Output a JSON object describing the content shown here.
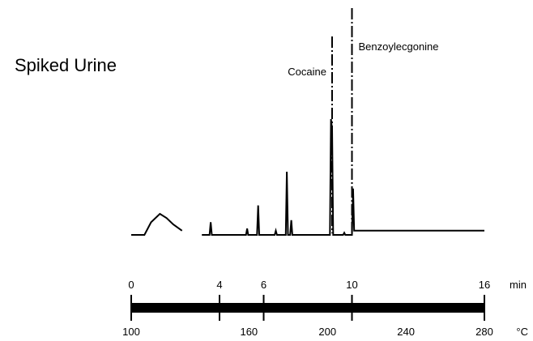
{
  "chart_data": {
    "type": "line",
    "title": "Spiked Urine",
    "peak_labels": [
      {
        "text": "Cocaine",
        "time_min": 9.1
      },
      {
        "text": "Benzoylecgonine",
        "time_min": 10.0
      }
    ],
    "time_axis": {
      "ticks": [
        "0",
        "4",
        "6",
        "10",
        "16"
      ],
      "unit": "min",
      "range": [
        0,
        16
      ]
    },
    "temperature_axis": {
      "ticks": [
        "100",
        "160",
        "200",
        "240",
        "280"
      ],
      "unit": "°C",
      "range": [
        100,
        280
      ]
    },
    "series": [
      {
        "points": [
          [
            0.0,
            0.0
          ],
          [
            0.6,
            0.0
          ],
          [
            0.9,
            0.06
          ],
          [
            1.3,
            0.1
          ],
          [
            1.6,
            0.08
          ],
          [
            1.9,
            0.05
          ],
          [
            2.3,
            0.02
          ],
          [
            2.6,
            null
          ],
          [
            3.2,
            0.0
          ],
          [
            3.55,
            0.0
          ],
          [
            3.6,
            0.06
          ],
          [
            3.65,
            0.0
          ],
          [
            5.2,
            0.0
          ],
          [
            5.25,
            0.03
          ],
          [
            5.3,
            0.0
          ],
          [
            5.7,
            0.0
          ],
          [
            5.75,
            0.14
          ],
          [
            5.8,
            0.0
          ],
          [
            6.5,
            0.0
          ],
          [
            6.55,
            0.02
          ],
          [
            6.6,
            0.0
          ],
          [
            7.0,
            0.0
          ],
          [
            7.05,
            0.3
          ],
          [
            7.1,
            0.0
          ],
          [
            7.2,
            0.0
          ],
          [
            7.25,
            0.07
          ],
          [
            7.3,
            0.0
          ],
          [
            9.0,
            0.0
          ],
          [
            9.05,
            0.55
          ],
          [
            9.1,
            0.5
          ],
          [
            9.15,
            0.0
          ],
          [
            9.6,
            0.0
          ],
          [
            9.65,
            0.01
          ],
          [
            9.7,
            0.0
          ],
          [
            9.8,
            0.0
          ],
          [
            10.0,
            0.0
          ],
          [
            10.05,
            0.22
          ],
          [
            10.1,
            0.02
          ],
          [
            10.2,
            0.02
          ],
          [
            12.0,
            0.02
          ],
          [
            14.0,
            0.02
          ],
          [
            16.0,
            0.02
          ]
        ]
      }
    ]
  }
}
